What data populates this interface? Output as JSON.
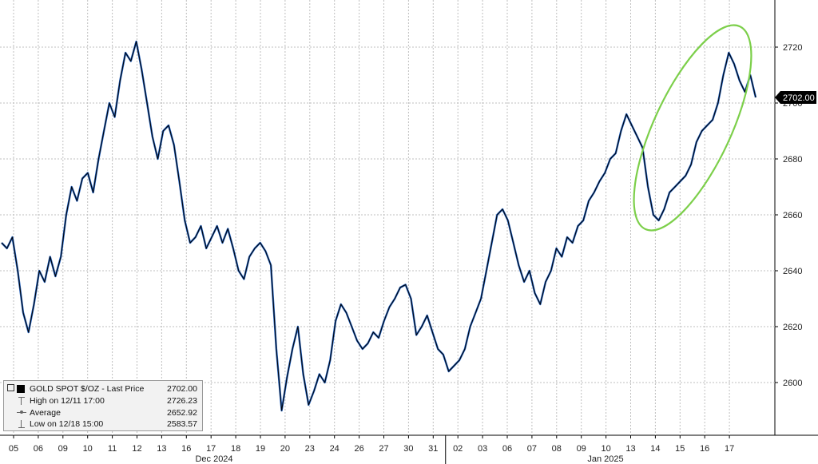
{
  "chart_data": {
    "type": "line",
    "title": "",
    "series": [
      {
        "name": "GOLD SPOT $/OZ - Last Price",
        "color": "#000000",
        "line_color_secondary": "#1f5fbf",
        "values": [
          2650,
          2648,
          2652,
          2640,
          2625,
          2618,
          2628,
          2640,
          2636,
          2645,
          2638,
          2645,
          2660,
          2670,
          2665,
          2673,
          2675,
          2668,
          2680,
          2690,
          2700,
          2695,
          2708,
          2718,
          2715,
          2722,
          2712,
          2700,
          2688,
          2680,
          2690,
          2692,
          2685,
          2672,
          2658,
          2650,
          2652,
          2656,
          2648,
          2652,
          2656,
          2650,
          2655,
          2648,
          2640,
          2637,
          2645,
          2648,
          2650,
          2647,
          2642,
          2612,
          2590,
          2602,
          2612,
          2620,
          2603,
          2592,
          2597,
          2603,
          2600,
          2608,
          2622,
          2628,
          2625,
          2620,
          2615,
          2612,
          2614,
          2618,
          2616,
          2622,
          2627,
          2630,
          2634,
          2635,
          2630,
          2617,
          2620,
          2624,
          2618,
          2612,
          2610,
          2604,
          2606,
          2608,
          2612,
          2620,
          2625,
          2630,
          2640,
          2650,
          2660,
          2662,
          2658,
          2650,
          2642,
          2636,
          2640,
          2632,
          2628,
          2636,
          2640,
          2648,
          2645,
          2652,
          2650,
          2656,
          2658,
          2665,
          2668,
          2672,
          2675,
          2680,
          2682,
          2690,
          2696,
          2692,
          2688,
          2684,
          2670,
          2660,
          2658,
          2662,
          2668,
          2670,
          2672,
          2674,
          2678,
          2686,
          2690,
          2692,
          2694,
          2700,
          2710,
          2718,
          2714,
          2708,
          2704,
          2710,
          2702
        ]
      }
    ],
    "x_tick_labels": [
      "05",
      "06",
      "09",
      "10",
      "11",
      "12",
      "13",
      "16",
      "17",
      "18",
      "19",
      "20",
      "23",
      "24",
      "26",
      "27",
      "30",
      "31",
      "02",
      "03",
      "06",
      "07",
      "08",
      "09",
      "10",
      "13",
      "14",
      "15",
      "16",
      "17"
    ],
    "x_group_labels": [
      "Dec 2024",
      "Jan 2025"
    ],
    "y_tick_labels": [
      "2720",
      "2700",
      "2680",
      "2660",
      "2640",
      "2620",
      "2600"
    ],
    "ylim": [
      2580,
      2735
    ],
    "last_price_label": "2702.00",
    "grid": true,
    "annotation": "green ellipse highlighting Jan 13–17 rally",
    "legend": {
      "placement": "bottom-left",
      "rows": [
        {
          "label": "GOLD SPOT $/OZ - Last Price",
          "value": "2702.00"
        },
        {
          "label": "High on 12/11 17:00",
          "value": "2726.23"
        },
        {
          "label": "Average",
          "value": "2652.92"
        },
        {
          "label": "Low on 12/18 15:00",
          "value": "2583.57"
        }
      ]
    },
    "colors": {
      "background": "#000000",
      "grid": "#bfbfbf",
      "annotation": "#7ccf4a",
      "axis_text": "#222222"
    }
  }
}
